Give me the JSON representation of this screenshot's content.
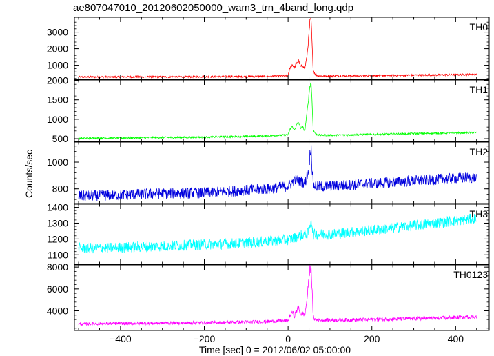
{
  "title": "ae807047010_20120602050000_wam3_trn_4band_long.qdp",
  "chart_data": {
    "type": "line",
    "title": "ae807047010_20120602050000_wam3_trn_4band_long.qdp",
    "xlabel": "Time [sec] 0 = 2012/06/02 05:00:00",
    "ylabel": "Counts/sec",
    "xlim": [
      -510,
      480
    ],
    "xticks": [
      -400,
      -200,
      0,
      200,
      400
    ],
    "xtick_labels": [
      "−400",
      "−200",
      "0",
      "200",
      "400"
    ],
    "grid": false,
    "panels": [
      {
        "label": "TH0",
        "color": "#ff0000",
        "ylim": [
          150,
          3900
        ],
        "yticks": [
          1000,
          2000,
          3000
        ],
        "ytick_labels": [
          "1000",
          "2000",
          "3000"
        ],
        "series": {
          "x": [
            -500,
            -400,
            -300,
            -200,
            -100,
            -50,
            0,
            5,
            10,
            15,
            20,
            25,
            30,
            35,
            40,
            45,
            50,
            52,
            55,
            57,
            60,
            65,
            70,
            80,
            100,
            200,
            300,
            400,
            450
          ],
          "y": [
            290,
            300,
            300,
            310,
            320,
            330,
            360,
            900,
            1050,
            850,
            1100,
            1300,
            900,
            1000,
            800,
            1500,
            2900,
            3600,
            3750,
            2400,
            700,
            450,
            380,
            360,
            350,
            370,
            400,
            430,
            450
          ]
        }
      },
      {
        "label": "TH1",
        "color": "#00ff00",
        "ylim": [
          430,
          2010
        ],
        "yticks": [
          500,
          1000,
          1500,
          2000
        ],
        "ytick_labels": [
          "500",
          "1000",
          "1500",
          "2000"
        ],
        "series": {
          "x": [
            -500,
            -400,
            -300,
            -200,
            -100,
            -50,
            0,
            5,
            10,
            15,
            20,
            25,
            30,
            35,
            40,
            45,
            50,
            52,
            55,
            57,
            60,
            65,
            70,
            80,
            100,
            200,
            300,
            400,
            450
          ],
          "y": [
            510,
            520,
            530,
            540,
            560,
            570,
            600,
            750,
            820,
            720,
            850,
            920,
            780,
            800,
            700,
            1150,
            1650,
            1850,
            1950,
            1500,
            720,
            640,
            600,
            590,
            590,
            610,
            630,
            650,
            660
          ]
        }
      },
      {
        "label": "TH2",
        "color": "#0000dd",
        "ylim": [
          690,
          1150
        ],
        "yticks": [
          800,
          1000
        ],
        "ytick_labels": [
          "800",
          "1000"
        ],
        "series": {
          "x": [
            -500,
            -400,
            -300,
            -200,
            -100,
            -50,
            0,
            10,
            20,
            30,
            40,
            50,
            52,
            55,
            57,
            60,
            70,
            100,
            200,
            300,
            400,
            450
          ],
          "y": [
            745,
            755,
            765,
            770,
            790,
            800,
            820,
            850,
            870,
            860,
            840,
            950,
            1060,
            1120,
            960,
            830,
            815,
            820,
            840,
            860,
            880,
            885
          ]
        }
      },
      {
        "label": "TH3",
        "color": "#00ffff",
        "ylim": [
          1040,
          1420
        ],
        "yticks": [
          1100,
          1200,
          1300,
          1400
        ],
        "ytick_labels": [
          "1100",
          "1200",
          "1300",
          "1400"
        ],
        "series": {
          "x": [
            -500,
            -400,
            -300,
            -200,
            -100,
            0,
            50,
            55,
            60,
            100,
            200,
            300,
            400,
            450
          ],
          "y": [
            1140,
            1145,
            1155,
            1165,
            1175,
            1195,
            1240,
            1330,
            1230,
            1230,
            1255,
            1285,
            1315,
            1330
          ]
        }
      },
      {
        "label": "TH0123",
        "color": "#ff00ff",
        "ylim": [
          2200,
          8200
        ],
        "yticks": [
          4000,
          6000,
          8000
        ],
        "ytick_labels": [
          "4000",
          "6000",
          "8000"
        ],
        "series": {
          "x": [
            -500,
            -400,
            -300,
            -200,
            -100,
            -50,
            0,
            5,
            10,
            15,
            20,
            25,
            30,
            35,
            40,
            45,
            50,
            52,
            55,
            57,
            60,
            65,
            70,
            80,
            100,
            200,
            300,
            400,
            450
          ],
          "y": [
            2800,
            2840,
            2880,
            2920,
            2980,
            3020,
            3100,
            3600,
            3900,
            3500,
            4000,
            4300,
            3700,
            3800,
            3600,
            5000,
            7000,
            7800,
            8000,
            6200,
            3400,
            3200,
            3150,
            3150,
            3150,
            3200,
            3280,
            3380,
            3450
          ]
        }
      }
    ]
  }
}
